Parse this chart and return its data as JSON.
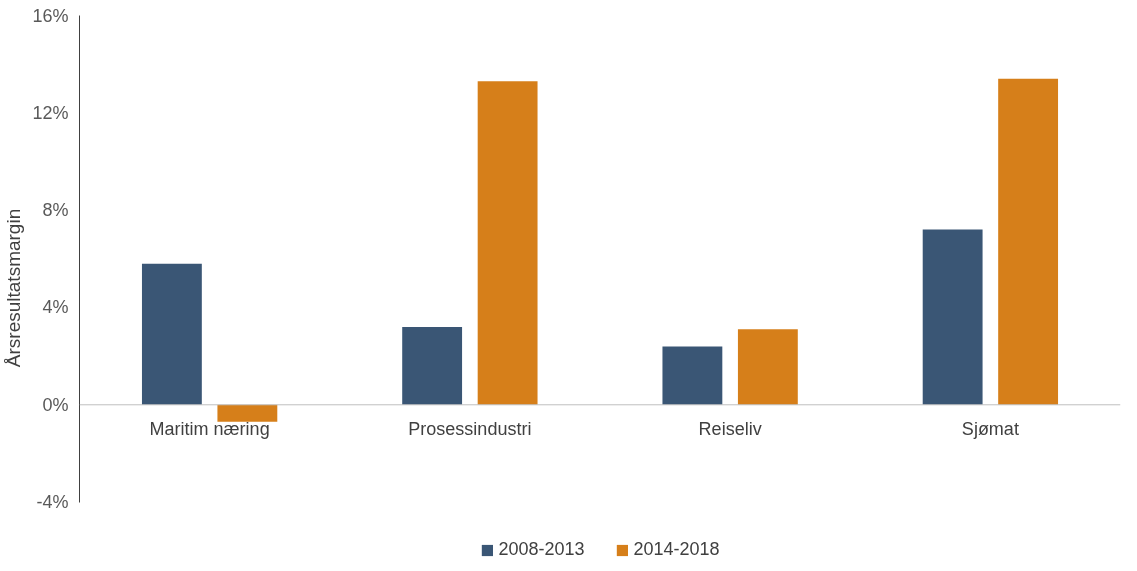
{
  "chart_data": {
    "type": "bar",
    "ylabel": "Årsresultatsmargin",
    "categories": [
      "Maritim næring",
      "Prosessindustri",
      "Reiseliv",
      "Sjømat"
    ],
    "series": [
      {
        "name": "2008-2013",
        "color": "#3a5675",
        "values": [
          5.8,
          3.2,
          2.4,
          7.2
        ]
      },
      {
        "name": "2014-2018",
        "color": "#d67f1a",
        "values": [
          -0.7,
          13.3,
          3.1,
          13.4
        ]
      }
    ],
    "ylim": [
      -4,
      16
    ],
    "yticks": [
      {
        "value": -4,
        "label": "-4%"
      },
      {
        "value": 0,
        "label": "0%"
      },
      {
        "value": 4,
        "label": "4%"
      },
      {
        "value": 8,
        "label": "8%"
      },
      {
        "value": 12,
        "label": "12%"
      },
      {
        "value": 16,
        "label": "16%"
      }
    ],
    "grid": false,
    "legend": "bottom"
  }
}
